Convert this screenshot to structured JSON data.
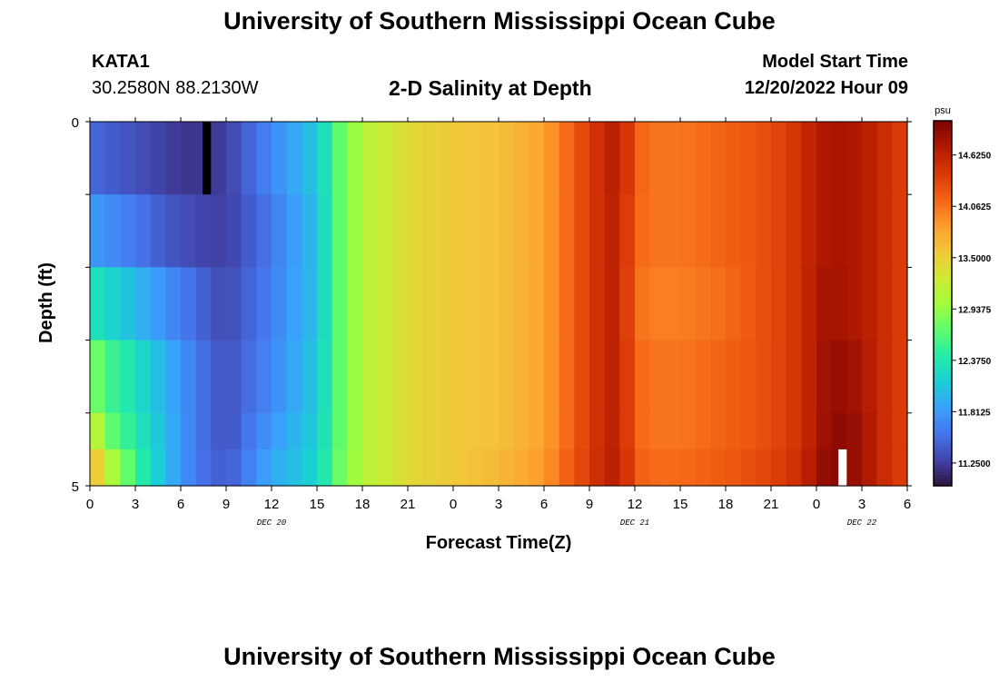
{
  "header": {
    "title": "University of Southern Mississippi Ocean Cube",
    "station_id": "KATA1",
    "station_coords": "30.2580N  88.2130W",
    "chart_title": "2-D Salinity at Depth",
    "model_start_label": "Model Start Time",
    "model_start_value": "12/20/2022 Hour 09"
  },
  "footer": {
    "title": "University of Southern Mississippi Ocean Cube"
  },
  "chart_data": {
    "type": "heatmap",
    "title": "2-D Salinity at Depth",
    "xlabel": "Forecast Time(Z)",
    "ylabel": "Depth (ft)",
    "x_tick_labels": [
      "0",
      "3",
      "6",
      "9",
      "12",
      "15",
      "18",
      "21",
      "0",
      "3",
      "6",
      "9",
      "12",
      "15",
      "18",
      "21",
      "0",
      "3",
      "6"
    ],
    "x_range_hours": [
      0,
      54
    ],
    "day_labels": [
      {
        "label": "DEC 20",
        "hour": 12
      },
      {
        "label": "DEC 21",
        "hour": 36
      },
      {
        "label": "DEC 22",
        "hour": 51
      }
    ],
    "y_tick_labels": [
      "0",
      "5"
    ],
    "y_range_ft": [
      0,
      5
    ],
    "depth_levels_ft": [
      0,
      1,
      2,
      3,
      4,
      4.5
    ],
    "colorbar": {
      "unit": "psu",
      "vmin": 11.0,
      "vmax": 15.0,
      "tick_values": [
        14.625,
        14.0625,
        13.5,
        12.9375,
        12.375,
        11.8125,
        11.25
      ],
      "tick_labels": [
        "14.6250",
        "14.0625",
        "13.5000",
        "12.9375",
        "12.3750",
        "11.8125",
        "11.2500"
      ],
      "colors": [
        "#30123b",
        "#4145ab",
        "#4675ed",
        "#39a2fc",
        "#1bcfd4",
        "#24eca6",
        "#61fc6c",
        "#a4fc3b",
        "#d1e834",
        "#f3c63a",
        "#fe9b2d",
        "#f36315",
        "#d93806",
        "#b11901",
        "#7a0403"
      ]
    },
    "time_keys_hours": [
      0,
      1,
      3,
      5,
      7,
      9,
      12,
      15,
      16.5,
      18,
      21,
      24,
      27,
      30,
      32,
      34,
      35,
      36,
      37,
      39,
      42,
      45,
      47,
      48,
      49,
      50,
      51,
      52,
      54
    ],
    "salinity_by_depth": [
      [
        11.5,
        11.45,
        11.35,
        11.25,
        11.2,
        11.25,
        11.7,
        12.1,
        12.7,
        13.1,
        13.4,
        13.55,
        13.6,
        13.8,
        14.2,
        14.6,
        14.7,
        14.2,
        14.05,
        14.05,
        14.15,
        14.3,
        14.5,
        14.7,
        14.75,
        14.75,
        14.7,
        14.6,
        14.35
      ],
      [
        11.8,
        11.75,
        11.6,
        11.4,
        11.3,
        11.25,
        11.6,
        12.05,
        12.7,
        13.1,
        13.4,
        13.55,
        13.6,
        13.8,
        14.2,
        14.6,
        14.65,
        14.15,
        14.05,
        14.05,
        14.15,
        14.3,
        14.5,
        14.7,
        14.75,
        14.75,
        14.7,
        14.6,
        14.35
      ],
      [
        12.35,
        12.25,
        12.0,
        11.75,
        11.5,
        11.3,
        11.65,
        12.05,
        12.7,
        13.1,
        13.4,
        13.55,
        13.6,
        13.8,
        14.2,
        14.6,
        14.65,
        14.1,
        14.0,
        14.0,
        14.1,
        14.3,
        14.5,
        14.75,
        14.8,
        14.75,
        14.7,
        14.6,
        14.35
      ],
      [
        12.9,
        12.6,
        12.3,
        11.95,
        11.6,
        11.35,
        11.7,
        12.1,
        12.7,
        13.1,
        13.4,
        13.55,
        13.6,
        13.8,
        14.2,
        14.6,
        14.65,
        14.15,
        14.05,
        14.05,
        14.15,
        14.3,
        14.5,
        14.75,
        14.85,
        14.85,
        14.75,
        14.6,
        14.35
      ],
      [
        13.4,
        12.8,
        12.4,
        12.0,
        11.6,
        11.35,
        11.8,
        12.15,
        12.7,
        13.1,
        13.4,
        13.55,
        13.6,
        13.8,
        14.2,
        14.6,
        14.65,
        14.15,
        14.05,
        14.05,
        14.15,
        14.3,
        14.5,
        14.75,
        14.9,
        14.9,
        14.8,
        14.6,
        14.35
      ],
      [
        13.8,
        13.2,
        12.55,
        12.0,
        11.6,
        11.4,
        11.9,
        12.2,
        12.75,
        13.1,
        13.4,
        13.55,
        13.65,
        13.85,
        14.25,
        14.6,
        14.7,
        14.2,
        14.1,
        14.1,
        14.2,
        14.35,
        14.55,
        14.8,
        14.95,
        14.9,
        14.8,
        14.6,
        14.35
      ]
    ],
    "missing_cells": [
      {
        "hour": 7,
        "depth_ft": 0,
        "color": "#000000"
      },
      {
        "hour": 49,
        "depth_ft": 4.5,
        "color": "#ffffff"
      }
    ]
  }
}
